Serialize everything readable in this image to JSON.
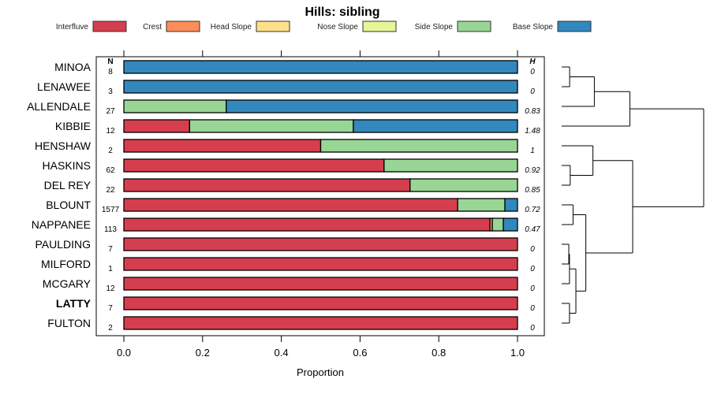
{
  "chart_data": {
    "type": "bar",
    "orientation": "horizontal-stacked",
    "title": "Hills: sibling",
    "xlabel": "Proportion",
    "xlim": [
      0,
      1
    ],
    "xticks": [
      "0.0",
      "0.2",
      "0.4",
      "0.6",
      "0.8",
      "1.0"
    ],
    "n_header": "N",
    "h_header": "H",
    "legend": {
      "placement": "top",
      "entries": [
        {
          "name": "Interfluve",
          "color": "#D53E4F"
        },
        {
          "name": "Crest",
          "color": "#FC8D59"
        },
        {
          "name": "Head Slope",
          "color": "#FEE08B"
        },
        {
          "name": "Nose Slope",
          "color": "#E6F598"
        },
        {
          "name": "Side Slope",
          "color": "#99D594"
        },
        {
          "name": "Base Slope",
          "color": "#3288BD"
        }
      ]
    },
    "rows": [
      {
        "label": "MINOA",
        "bold": false,
        "n": "8",
        "h": "0",
        "values": [
          0,
          0,
          0,
          0,
          0,
          1
        ]
      },
      {
        "label": "LENAWEE",
        "bold": false,
        "n": "3",
        "h": "0",
        "values": [
          0,
          0,
          0,
          0,
          0,
          1
        ]
      },
      {
        "label": "ALLENDALE",
        "bold": false,
        "n": "27",
        "h": "0.83",
        "values": [
          0,
          0,
          0,
          0,
          0.26,
          0.74
        ]
      },
      {
        "label": "KIBBIE",
        "bold": false,
        "n": "12",
        "h": "1.48",
        "values": [
          0.167,
          0,
          0,
          0,
          0.416,
          0.417
        ]
      },
      {
        "label": "HENSHAW",
        "bold": false,
        "n": "2",
        "h": "1",
        "values": [
          0.5,
          0,
          0,
          0,
          0.5,
          0
        ]
      },
      {
        "label": "HASKINS",
        "bold": false,
        "n": "62",
        "h": "0.92",
        "values": [
          0.661,
          0,
          0,
          0,
          0.339,
          0
        ]
      },
      {
        "label": "DEL REY",
        "bold": false,
        "n": "22",
        "h": "0.85",
        "values": [
          0.727,
          0,
          0,
          0,
          0.273,
          0
        ]
      },
      {
        "label": "BLOUNT",
        "bold": false,
        "n": "1577",
        "h": "0.72",
        "values": [
          0.848,
          0,
          0,
          0,
          0.12,
          0.032
        ]
      },
      {
        "label": "NAPPANEE",
        "bold": false,
        "n": "113",
        "h": "0.47",
        "values": [
          0.93,
          0.006,
          0,
          0,
          0.028,
          0.036
        ]
      },
      {
        "label": "PAULDING",
        "bold": false,
        "n": "7",
        "h": "0",
        "values": [
          1,
          0,
          0,
          0,
          0,
          0
        ]
      },
      {
        "label": "MILFORD",
        "bold": false,
        "n": "1",
        "h": "0",
        "values": [
          1,
          0,
          0,
          0,
          0,
          0
        ]
      },
      {
        "label": "MCGARY",
        "bold": false,
        "n": "12",
        "h": "0",
        "values": [
          1,
          0,
          0,
          0,
          0,
          0
        ]
      },
      {
        "label": "LATTY",
        "bold": true,
        "n": "7",
        "h": "0",
        "values": [
          1,
          0,
          0,
          0,
          0,
          0
        ]
      },
      {
        "label": "FULTON",
        "bold": false,
        "n": "2",
        "h": "0",
        "values": [
          1,
          0,
          0,
          0,
          0,
          0
        ]
      }
    ],
    "dendrogram": {
      "height": 1.0,
      "children": [
        {
          "height": 0.48,
          "children": [
            {
              "height": 0.23,
              "children": [
                {
                  "height": 0.056,
                  "children": [
                    "MINOA",
                    "LENAWEE"
                  ]
                },
                "ALLENDALE"
              ]
            },
            "KIBBIE"
          ]
        },
        {
          "height": 0.5,
          "children": [
            {
              "height": 0.22,
              "children": [
                "HENSHAW",
                {
                  "height": 0.06,
                  "children": [
                    "HASKINS",
                    "DEL REY"
                  ]
                }
              ]
            },
            {
              "height": 0.17,
              "children": [
                {
                  "height": 0.08,
                  "children": [
                    "BLOUNT",
                    "NAPPANEE"
                  ]
                },
                {
                  "height": 0.1,
                  "children": [
                    {
                      "height": 0.055,
                      "children": [
                        {
                          "height": 0.05,
                          "children": [
                            "PAULDING",
                            "MILFORD"
                          ]
                        },
                        "MCGARY"
                      ]
                    },
                    {
                      "height": 0.055,
                      "children": [
                        "LATTY",
                        "FULTON"
                      ]
                    }
                  ]
                }
              ]
            }
          ]
        }
      ]
    }
  }
}
